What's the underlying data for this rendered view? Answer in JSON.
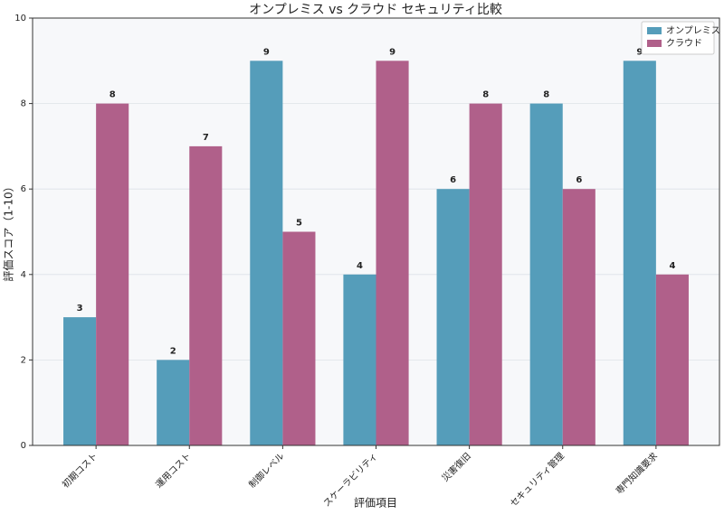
{
  "chart_data": {
    "type": "bar",
    "title": "オンプレミス vs クラウド セキュリティ比較",
    "x_label": "評価項目",
    "y_label": "評価スコア（1-10）",
    "categories": [
      "初期コスト",
      "運用コスト",
      "制御レベル",
      "スケーラビリティ",
      "災害復旧",
      "セキュリティ管理",
      "専門知識要求"
    ],
    "series": [
      {
        "name": "オンプレミス",
        "color": "#559dba",
        "values": [
          3,
          2,
          9,
          4,
          6,
          8,
          9
        ]
      },
      {
        "name": "クラウド",
        "color": "#b0608a",
        "values": [
          8,
          7,
          5,
          9,
          8,
          6,
          4
        ]
      }
    ],
    "ylim": [
      0,
      10
    ],
    "yticks": [
      0,
      2,
      4,
      6,
      8,
      10
    ],
    "grid": true,
    "legend": "upper right"
  }
}
